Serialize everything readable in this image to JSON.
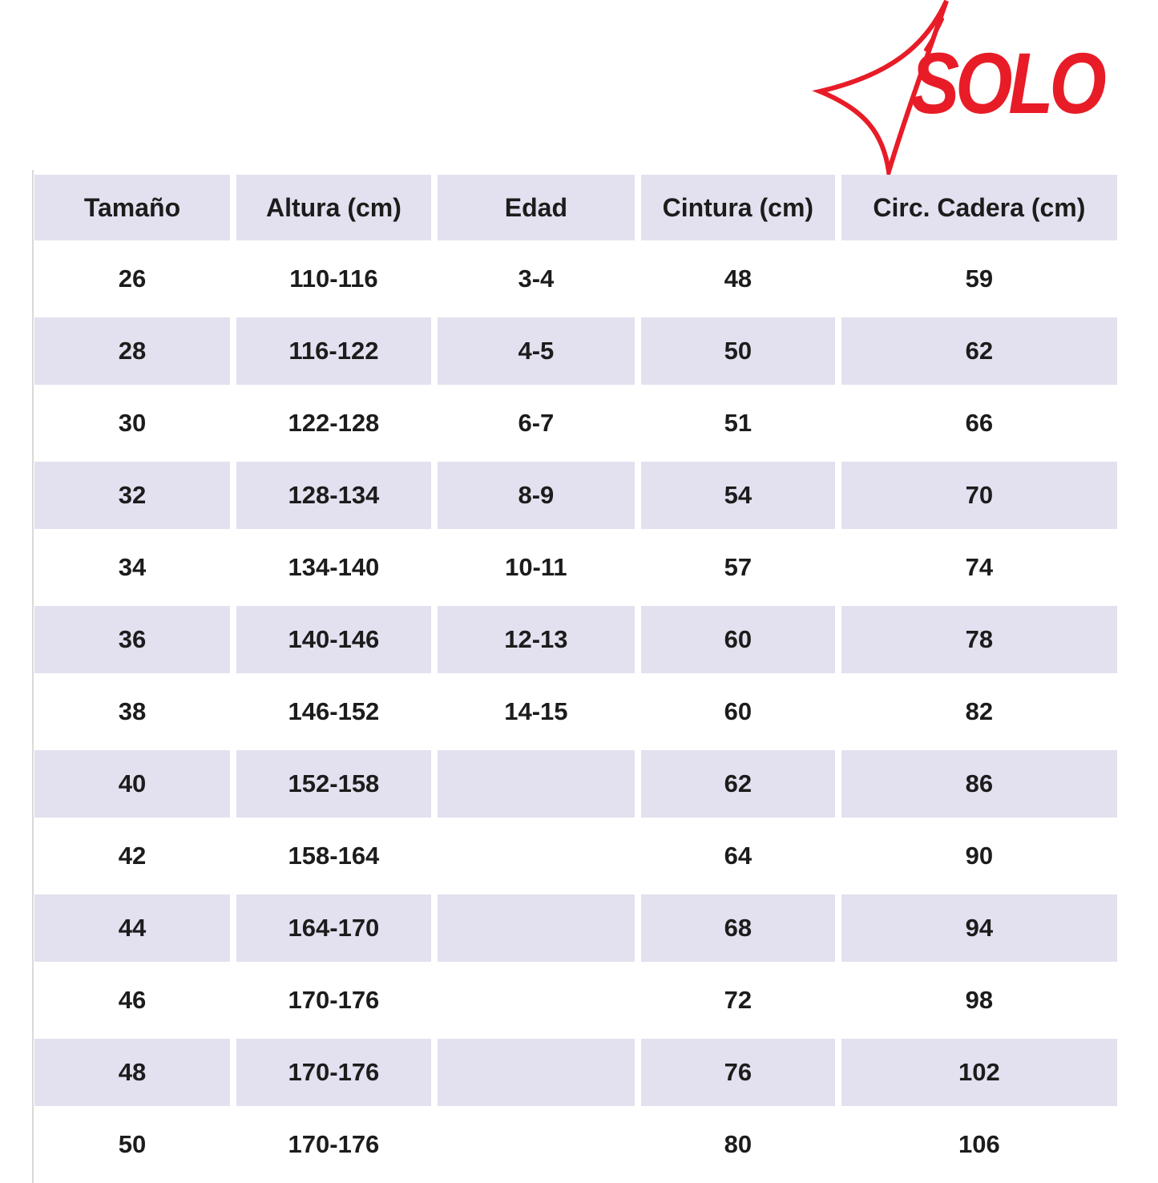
{
  "logo": {
    "text": "SOLO",
    "color": "#e81c27",
    "icon": "four-point-star-icon"
  },
  "style": {
    "header_fill": "#e3e1ef",
    "alt_row_fill": "#e3e1ef",
    "text_color": "#1c1c1c",
    "left_rule_color": "#d9d9d7"
  },
  "chart_data": {
    "type": "table",
    "title": "",
    "columns": [
      "Tamaño",
      "Altura (cm)",
      "Edad",
      "Cintura (cm)",
      "Circ. Cadera (cm)"
    ],
    "rows": [
      [
        "26",
        "110-116",
        "3-4",
        "48",
        "59"
      ],
      [
        "28",
        "116-122",
        "4-5",
        "50",
        "62"
      ],
      [
        "30",
        "122-128",
        "6-7",
        "51",
        "66"
      ],
      [
        "32",
        "128-134",
        "8-9",
        "54",
        "70"
      ],
      [
        "34",
        "134-140",
        "10-11",
        "57",
        "74"
      ],
      [
        "36",
        "140-146",
        "12-13",
        "60",
        "78"
      ],
      [
        "38",
        "146-152",
        "14-15",
        "60",
        "82"
      ],
      [
        "40",
        "152-158",
        "",
        "62",
        "86"
      ],
      [
        "42",
        "158-164",
        "",
        "64",
        "90"
      ],
      [
        "44",
        "164-170",
        "",
        "68",
        "94"
      ],
      [
        "46",
        "170-176",
        "",
        "72",
        "98"
      ],
      [
        "48",
        "170-176",
        "",
        "76",
        "102"
      ],
      [
        "50",
        "170-176",
        "",
        "80",
        "106"
      ]
    ]
  }
}
